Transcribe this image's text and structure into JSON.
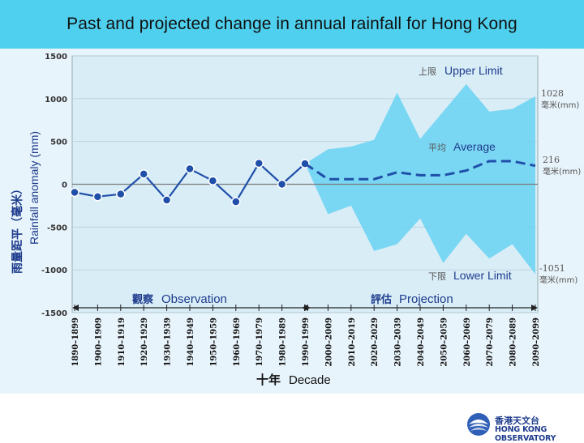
{
  "title": "Past and projected change in annual rainfall for Hong Kong",
  "colors": {
    "title_band": "#4fd0ee",
    "plot_bg": "#d9edf7",
    "projection_band": "#6fd4f2",
    "series": "#1f4fa8",
    "zero_line": "#7a7a7a",
    "label_blue": "#1d3b8c"
  },
  "chart_data": {
    "type": "line",
    "title": "Past and projected change in annual rainfall for Hong Kong",
    "xlabel": "十年 Decade",
    "ylabel": "雨量距平（毫米）Rainfall anomaly (mm)",
    "ylim": [
      -1500,
      1500
    ],
    "yticks": [
      1500,
      1000,
      500,
      0,
      -500,
      -1000,
      -1500
    ],
    "grid": true,
    "categories": [
      "1890–1899",
      "1900–1909",
      "1910–1919",
      "1920–1929",
      "1930–1939",
      "1940–1949",
      "1950–1959",
      "1960–1969",
      "1970–1979",
      "1980–1989",
      "1990–1999",
      "2000–2009",
      "2010–2019",
      "2020–2029",
      "2030–2039",
      "2040–2049",
      "2050–2059",
      "2060–2069",
      "2070–2079",
      "2080–2089",
      "2090–2099"
    ],
    "observation": {
      "values": [
        -95,
        -145,
        -115,
        120,
        -185,
        180,
        40,
        -205,
        245,
        0,
        240
      ]
    },
    "projection": {
      "average": {
        "label_cn": "平均",
        "label_en": "Average",
        "values": [
          240,
          60,
          60,
          60,
          140,
          105,
          105,
          160,
          270,
          270,
          216
        ],
        "final_value_label": "216",
        "unit_label": "毫米(mm)"
      },
      "upper": {
        "label_cn": "上限",
        "label_en": "Upper Limit",
        "values": [
          240,
          410,
          440,
          520,
          1070,
          530,
          850,
          1170,
          850,
          880,
          1028
        ],
        "final_value_label": "1028",
        "unit_label": "毫米(mm)"
      },
      "lower": {
        "label_cn": "下限",
        "label_en": "Lower Limit",
        "values": [
          240,
          -350,
          -250,
          -780,
          -700,
          -400,
          -920,
          -580,
          -870,
          -700,
          -1051
        ],
        "final_value_label": "-1051",
        "unit_label": "毫米(mm)"
      }
    },
    "period_labels": {
      "observation_cn": "觀察",
      "observation_en": "Observation",
      "projection_cn": "評估",
      "projection_en": "Projection"
    },
    "ylabel_cn": "雨量距平（毫米）",
    "ylabel_en": "Rainfall anomaly (mm)",
    "xlabel_cn": "十年",
    "xlabel_en": "Decade"
  },
  "logo": {
    "name_cn": "香港天文台",
    "name_en": "HONG KONG OBSERVATORY"
  }
}
